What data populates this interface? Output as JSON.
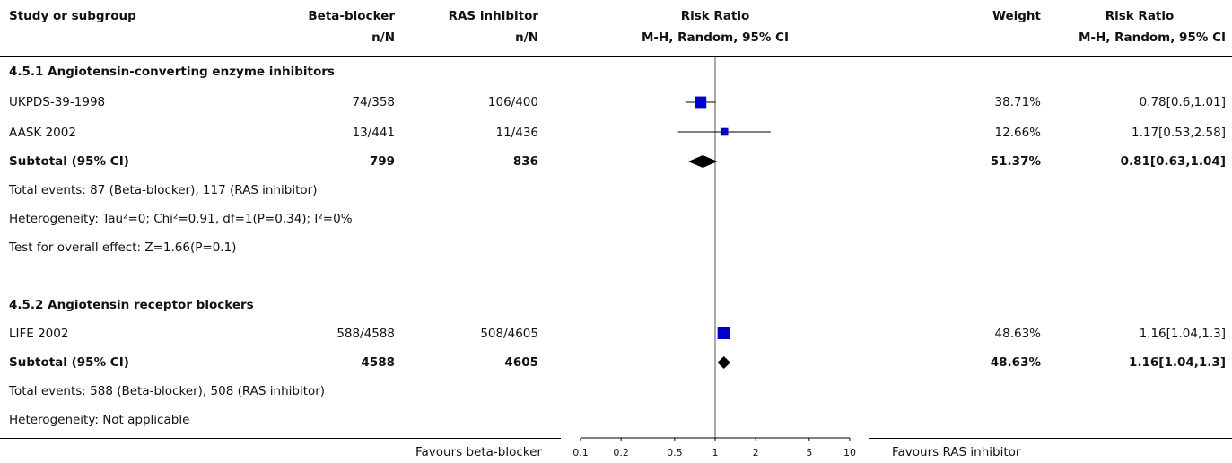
{
  "header": {
    "study": "Study or subgroup",
    "group1": "Beta-blocker",
    "group1_sub": "n/N",
    "group2": "RAS inhibitor",
    "group2_sub": "n/N",
    "plot": "Risk Ratio",
    "plot_sub": "M-H, Random, 95% CI",
    "weight": "Weight",
    "effect": "Risk Ratio",
    "effect_sub": "M-H, Random, 95% CI"
  },
  "subgroups": [
    {
      "title": "4.5.1 Angiotensin-converting enzyme inhibitors",
      "studies": [
        {
          "name": "UKPDS-39-1998",
          "g1": "74/358",
          "g2": "106/400",
          "weight": "38.71%",
          "ci": "0.78[0.6,1.01]"
        },
        {
          "name": "AASK 2002",
          "g1": "13/441",
          "g2": "11/436",
          "weight": "12.66%",
          "ci": "1.17[0.53,2.58]"
        }
      ],
      "subtotal": {
        "label": "Subtotal (95% CI)",
        "g1": "799",
        "g2": "836",
        "weight": "51.37%",
        "ci": "0.81[0.63,1.04]"
      },
      "notes": [
        "Total events: 87 (Beta-blocker), 117 (RAS inhibitor)",
        "Heterogeneity: Tau²=0; Chi²=0.91, df=1(P=0.34); I²=0%",
        "Test for overall effect: Z=1.66(P=0.1)"
      ]
    },
    {
      "title": "4.5.2 Angiotensin receptor blockers",
      "studies": [
        {
          "name": "LIFE 2002",
          "g1": "588/4588",
          "g2": "508/4605",
          "weight": "48.63%",
          "ci": "1.16[1.04,1.3]"
        }
      ],
      "subtotal": {
        "label": "Subtotal (95% CI)",
        "g1": "4588",
        "g2": "4605",
        "weight": "48.63%",
        "ci": "1.16[1.04,1.3]"
      },
      "notes": [
        "Total events: 588 (Beta-blocker), 508 (RAS inhibitor)",
        "Heterogeneity: Not applicable"
      ]
    }
  ],
  "footer": {
    "favours_left": "Favours beta-blocker",
    "favours_right": "Favours RAS inhibitor"
  },
  "chart_data": {
    "type": "forest",
    "scale": "log",
    "xlim": [
      0.1,
      10
    ],
    "ticks": [
      0.1,
      0.2,
      0.5,
      1,
      2,
      5,
      10
    ],
    "tick_labels": [
      "0.1",
      "0.2",
      "0.5",
      "1",
      "2",
      "5",
      "10"
    ],
    "null_line": 1,
    "marker_color": "#0000cc",
    "studies": [
      {
        "name": "UKPDS-39-1998",
        "rr": 0.78,
        "lo": 0.6,
        "hi": 1.01,
        "weight": 38.71
      },
      {
        "name": "AASK 2002",
        "rr": 1.17,
        "lo": 0.53,
        "hi": 2.58,
        "weight": 12.66
      },
      {
        "name": "LIFE 2002",
        "rr": 1.16,
        "lo": 1.04,
        "hi": 1.3,
        "weight": 48.63
      }
    ],
    "subtotals": [
      {
        "name": "4.5.1 Subtotal",
        "rr": 0.81,
        "lo": 0.63,
        "hi": 1.04
      },
      {
        "name": "4.5.2 Subtotal",
        "rr": 1.16,
        "lo": 1.04,
        "hi": 1.3
      }
    ]
  }
}
